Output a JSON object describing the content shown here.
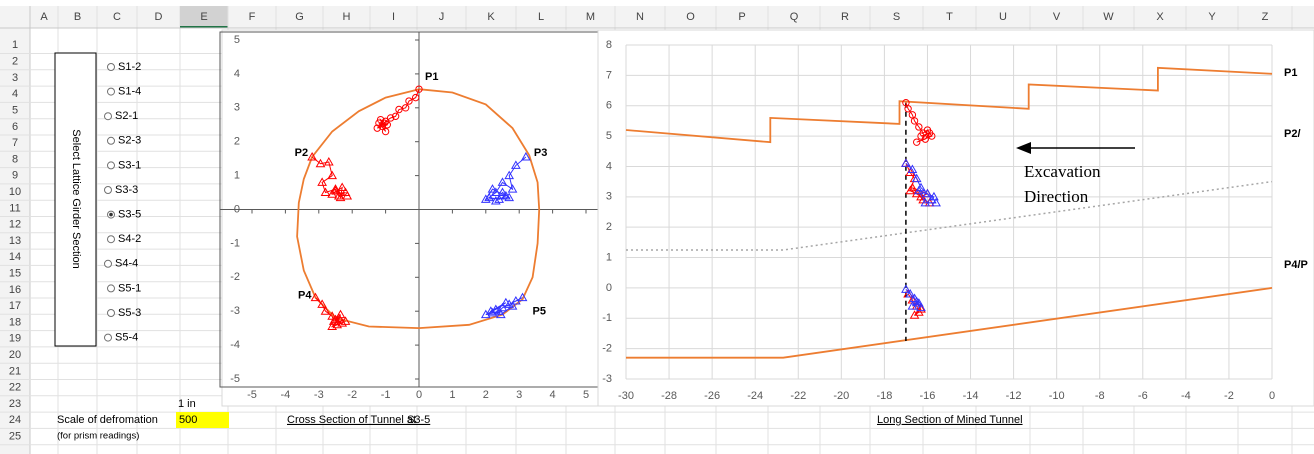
{
  "spreadsheet": {
    "columns": [
      "A",
      "B",
      "C",
      "D",
      "E",
      "F",
      "G",
      "H",
      "I",
      "J",
      "K",
      "L",
      "M",
      "N",
      "O",
      "P",
      "Q",
      "R",
      "S",
      "T",
      "U",
      "V",
      "W",
      "X",
      "Y",
      "Z"
    ],
    "rows": [
      1,
      2,
      3,
      4,
      5,
      6,
      7,
      8,
      9,
      10,
      11,
      12,
      13,
      14,
      15,
      16,
      17,
      18,
      19,
      20,
      21,
      22,
      23,
      24,
      25
    ],
    "selected_column": "E"
  },
  "controls": {
    "title": "Select Lattice Girder Section",
    "options": [
      "S1-2",
      "S1-4",
      "S2-1",
      "S2-3",
      "S3-1",
      "S3-3",
      "S3-5",
      "S4-2",
      "S4-4",
      "S5-1",
      "S5-3",
      "S5-4"
    ],
    "selected": "S3-5"
  },
  "scale": {
    "label": "Scale of defromation",
    "note": "(for prism readings)",
    "prefix": "1 in",
    "value": 500,
    "highlight": "#ffff00",
    "value_color": "#ff0000"
  },
  "chart_data": [
    {
      "type": "scatter",
      "title": "Cross Section of Tunnel at",
      "section": "S3-5",
      "xlim": [
        -5,
        5
      ],
      "ylim": [
        -5,
        5
      ],
      "xticks": [
        -5,
        -4,
        -3,
        -2,
        -1,
        0,
        1,
        2,
        3,
        4,
        5
      ],
      "yticks": [
        -5,
        -4,
        -3,
        -2,
        -1,
        0,
        1,
        2,
        3,
        4,
        5
      ],
      "grid": false,
      "zero_axes": true,
      "frame": true,
      "label_color": "#4472c4",
      "lines": [
        {
          "color": "#ed7d31",
          "style": "solid",
          "x": [
            0,
            1,
            2,
            2.8,
            3.3,
            3.55,
            3.6,
            3.55,
            3.4,
            3.1,
            2.5,
            1.5,
            0,
            -1.5,
            -2.5,
            -3.1,
            -3.45,
            -3.65,
            -3.6,
            -3.45,
            -3.2,
            -2.6,
            -1.8,
            -1,
            0
          ],
          "values": [
            3.55,
            3.45,
            3.1,
            2.4,
            1.6,
            0.8,
            0,
            -1,
            -2,
            -2.65,
            -3.1,
            -3.4,
            -3.5,
            -3.45,
            -3.2,
            -2.6,
            -1.8,
            -0.8,
            0.2,
            0.9,
            1.55,
            2.3,
            2.9,
            3.3,
            3.55
          ]
        }
      ],
      "series": [
        {
          "name": "P1",
          "color": "#ff0000",
          "marker": "circle",
          "x": [
            0,
            -0.1,
            -0.3,
            -0.4,
            -0.6,
            -0.7,
            -0.85,
            -1.0,
            -1.1,
            -1.2,
            -1.0,
            -1.15,
            -0.95,
            -1.25,
            -1.05
          ],
          "values": [
            3.55,
            3.3,
            3.2,
            3.0,
            2.95,
            2.75,
            2.7,
            2.6,
            2.45,
            2.55,
            2.3,
            2.65,
            2.5,
            2.4,
            2.55
          ]
        },
        {
          "name": "P2",
          "color": "#ff0000",
          "marker": "triangle",
          "x": [
            -3.2,
            -2.95,
            -2.7,
            -2.6,
            -2.9,
            -2.8,
            -2.5,
            -2.4,
            -2.2,
            -2.6,
            -2.3,
            -2.35,
            -2.5,
            -2.15
          ],
          "values": [
            1.55,
            1.35,
            1.4,
            1.0,
            0.8,
            0.5,
            0.6,
            0.4,
            0.5,
            0.45,
            0.65,
            0.35,
            0.55,
            0.4
          ]
        },
        {
          "name": "P3",
          "color": "#3333ff",
          "marker": "triangle",
          "x": [
            3.2,
            2.9,
            2.7,
            2.8,
            2.5,
            2.3,
            2.1,
            2.4,
            2.6,
            2.2,
            2.0,
            2.7,
            2.5,
            2.3
          ],
          "values": [
            1.55,
            1.3,
            1.0,
            0.6,
            0.8,
            0.5,
            0.35,
            0.3,
            0.4,
            0.6,
            0.3,
            0.35,
            0.5,
            0.25
          ]
        },
        {
          "name": "P4",
          "color": "#ff0000",
          "marker": "triangle",
          "x": [
            -3.1,
            -2.9,
            -2.8,
            -2.6,
            -2.55,
            -2.4,
            -2.6,
            -2.3,
            -2.5,
            -2.35,
            -2.45,
            -2.2
          ],
          "values": [
            -2.6,
            -2.8,
            -3.0,
            -3.15,
            -3.3,
            -3.2,
            -3.45,
            -3.35,
            -3.25,
            -3.1,
            -3.4,
            -3.3
          ]
        },
        {
          "name": "P5",
          "color": "#3333ff",
          "marker": "triangle",
          "x": [
            3.1,
            2.9,
            2.7,
            2.5,
            2.4,
            2.2,
            2.0,
            2.3,
            2.6,
            2.15,
            2.45,
            2.8
          ],
          "values": [
            -2.6,
            -2.7,
            -2.8,
            -2.9,
            -3.0,
            -3.05,
            -3.1,
            -2.95,
            -2.75,
            -3.0,
            -3.1,
            -2.85
          ]
        }
      ]
    },
    {
      "type": "scatter",
      "title": "Long Section of Mined Tunnel",
      "xlim": [
        -30,
        0
      ],
      "ylim": [
        -3,
        8
      ],
      "xticks": [
        -30,
        -28,
        -26,
        -24,
        -22,
        -20,
        -18,
        -16,
        -14,
        -12,
        -10,
        -8,
        -6,
        -4,
        -2,
        0
      ],
      "yticks": [
        -3,
        -2,
        -1,
        0,
        1,
        2,
        3,
        4,
        5,
        6,
        7,
        8
      ],
      "grid": true,
      "zero_axes": false,
      "frame": false,
      "label_color": "#4472c4",
      "end_labels": [
        "P1",
        "P2/",
        "P4/P"
      ],
      "annotation": [
        "Excavation",
        "Direction"
      ],
      "lines": [
        {
          "color": "#ed7d31",
          "style": "solid",
          "x": [
            -30,
            -23.3,
            -23.3,
            -17.3,
            -17.3,
            -11.3,
            -11.3,
            -5.3,
            -5.3,
            0
          ],
          "values": [
            5.2,
            4.8,
            5.6,
            5.4,
            6.15,
            5.9,
            6.7,
            6.5,
            7.25,
            7.05
          ]
        },
        {
          "color": "#ed7d31",
          "style": "solid",
          "x": [
            -30,
            -22.7,
            0
          ],
          "values": [
            -2.3,
            -2.3,
            0
          ]
        },
        {
          "color": "#a6a6a6",
          "style": "dotted",
          "x": [
            -30,
            -22.7,
            0
          ],
          "values": [
            1.25,
            1.25,
            3.5
          ]
        },
        {
          "color": "#000000",
          "style": "dashed",
          "x": [
            -17,
            -17
          ],
          "values": [
            6.1,
            -1.75
          ]
        }
      ],
      "series": [
        {
          "color": "#ff0000",
          "marker": "circle",
          "x": [
            -17,
            -16.9,
            -16.7,
            -16.6,
            -16.4,
            -16.2,
            -16.0,
            -15.8,
            -16.5,
            -16.1,
            -15.9,
            -16.3
          ],
          "values": [
            6.1,
            5.9,
            5.7,
            5.5,
            5.3,
            5.1,
            5.2,
            5.0,
            4.8,
            4.9,
            5.1,
            5.0
          ]
        },
        {
          "color": "#ff0000",
          "marker": "triangle",
          "x": [
            -17,
            -16.8,
            -16.6,
            -16.8,
            -16.5,
            -16.3,
            -16.0,
            -16.7,
            -16.2,
            -15.9
          ],
          "values": [
            4.1,
            3.8,
            3.6,
            3.2,
            3.1,
            3.0,
            3.1,
            3.3,
            2.9,
            2.8
          ]
        },
        {
          "color": "#3333ff",
          "marker": "triangle",
          "x": [
            -17,
            -16.7,
            -16.5,
            -16.3,
            -16.0,
            -15.8,
            -15.7,
            -16.4,
            -16.1,
            -15.6
          ],
          "values": [
            4.1,
            3.9,
            3.6,
            3.3,
            3.1,
            2.9,
            3.0,
            3.2,
            2.8,
            2.8
          ]
        },
        {
          "color": "#ff0000",
          "marker": "triangle",
          "x": [
            -16.9,
            -16.7,
            -16.5,
            -16.4,
            -16.6,
            -16.3
          ],
          "values": [
            -0.2,
            -0.4,
            -0.6,
            -0.8,
            -0.9,
            -0.7
          ]
        },
        {
          "color": "#3333ff",
          "marker": "triangle",
          "x": [
            -17,
            -16.8,
            -16.6,
            -16.4,
            -16.7,
            -16.5,
            -16.3
          ],
          "values": [
            -0.05,
            -0.2,
            -0.35,
            -0.5,
            -0.6,
            -0.45,
            -0.65
          ]
        }
      ]
    }
  ]
}
